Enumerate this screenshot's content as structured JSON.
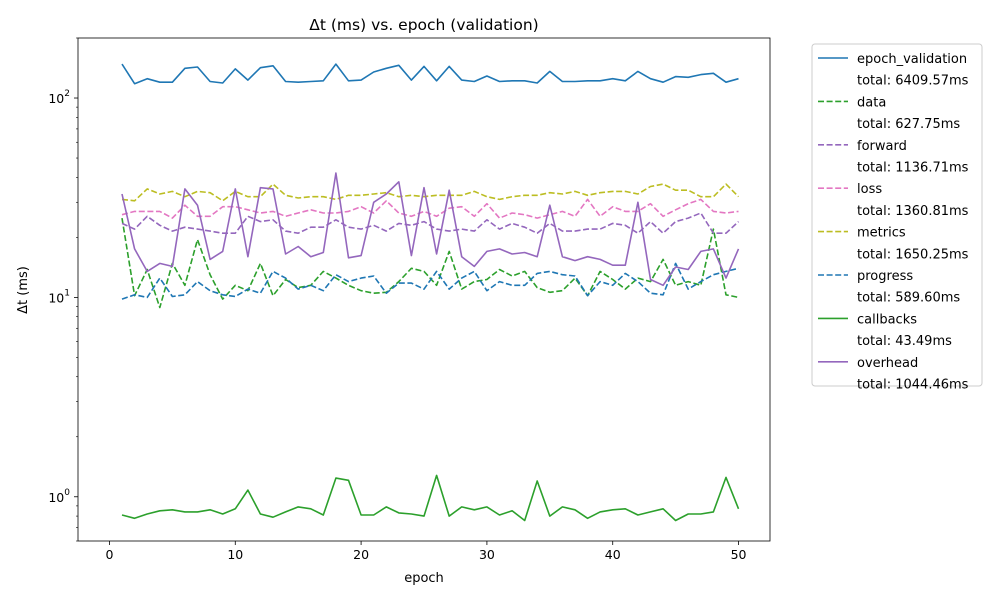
{
  "chart_data": {
    "type": "line",
    "title": "Δt (ms) vs. epoch (validation)",
    "xlabel": "epoch",
    "ylabel": "Δt (ms)",
    "yscale": "log",
    "xlim": [
      -2.5,
      52.5
    ],
    "ylim": [
      0.6,
      200
    ],
    "xticks": [
      0,
      10,
      20,
      30,
      40,
      50
    ],
    "yticks": [
      {
        "value": 1,
        "label": "10^0"
      },
      {
        "value": 10,
        "label": "10^1"
      },
      {
        "value": 100,
        "label": "10^2"
      }
    ],
    "grid": false,
    "legend_position": "outside-right-top",
    "x": [
      1,
      2,
      3,
      4,
      5,
      6,
      7,
      8,
      9,
      10,
      11,
      12,
      13,
      14,
      15,
      16,
      17,
      18,
      19,
      20,
      21,
      22,
      23,
      24,
      25,
      26,
      27,
      28,
      29,
      30,
      31,
      32,
      33,
      34,
      35,
      36,
      37,
      38,
      39,
      40,
      41,
      42,
      43,
      44,
      45,
      46,
      47,
      48,
      49,
      50
    ],
    "series": [
      {
        "name": "epoch_validation",
        "total": "total: 6409.57ms",
        "color": "#1f77b4",
        "dash": "solid",
        "values": [
          148,
          118,
          125,
          120,
          120,
          141,
          143,
          121,
          119,
          140,
          123,
          142,
          145,
          121,
          120,
          121,
          122,
          148,
          122,
          123,
          135,
          141,
          146,
          123,
          144,
          122,
          144,
          123,
          121,
          129,
          121,
          122,
          122,
          119,
          136,
          121,
          121,
          122,
          122,
          125,
          122,
          136,
          125,
          120,
          128,
          127,
          131,
          133,
          120,
          125
        ]
      },
      {
        "name": "data",
        "total": "total: 627.75ms",
        "color": "#2ca02c",
        "dash": "dashed",
        "values": [
          25,
          10.2,
          13.8,
          8.9,
          14.8,
          11.5,
          19.5,
          13,
          9.8,
          11.5,
          10.8,
          14.8,
          10.2,
          12.3,
          11.2,
          11.5,
          13.5,
          12.5,
          11.5,
          10.8,
          10.5,
          10.6,
          12,
          14,
          13.5,
          11.5,
          17,
          11,
          12,
          12.3,
          13.8,
          12.8,
          13.5,
          11.2,
          10.6,
          10.8,
          12.5,
          10.2,
          13.5,
          12.3,
          11,
          12.5,
          12,
          15.5,
          11.5,
          12,
          11.5,
          22,
          10.3,
          10
        ]
      },
      {
        "name": "forward",
        "total": "total: 1136.71ms",
        "color": "#9467bd",
        "dash": "dashed",
        "values": [
          23.5,
          22,
          25.5,
          23,
          21.5,
          22.5,
          22,
          21.5,
          21,
          21,
          25.5,
          24,
          24.5,
          21.5,
          21,
          22.5,
          22.5,
          24.5,
          22.5,
          22,
          23,
          21.5,
          23.5,
          23,
          24,
          22,
          21.5,
          22,
          21.5,
          24.5,
          22,
          23.5,
          22.5,
          21,
          23.5,
          21.5,
          21.5,
          22,
          22,
          23.5,
          23,
          21,
          24,
          21,
          24,
          25,
          26.5,
          21,
          21,
          24
        ]
      },
      {
        "name": "loss",
        "total": "total: 1360.81ms",
        "color": "#e377c2",
        "dash": "dashed",
        "values": [
          26,
          27,
          27,
          27,
          25,
          29,
          25.5,
          25.5,
          28.5,
          28.5,
          27.5,
          26.5,
          27,
          25.5,
          26.5,
          27.5,
          26.5,
          26.5,
          27,
          28.5,
          26.5,
          30.5,
          26.5,
          25.5,
          27,
          25.5,
          28,
          28.5,
          25.5,
          29.5,
          25,
          26.5,
          26,
          25,
          26,
          27,
          25.5,
          31,
          25.5,
          28.5,
          27,
          27,
          29.5,
          25.5,
          27.5,
          29.5,
          31,
          27,
          26.5,
          27
        ]
      },
      {
        "name": "metrics",
        "total": "total: 1650.25ms",
        "color": "#bcbd22",
        "dash": "dashed",
        "values": [
          31,
          30.5,
          35,
          33,
          34,
          32,
          34,
          33.5,
          30.5,
          34,
          32,
          32,
          37,
          32.5,
          31.5,
          32,
          32,
          31,
          32.5,
          32.5,
          33,
          33.5,
          32,
          32.5,
          32,
          32.5,
          32.5,
          32.5,
          34,
          32,
          31,
          32,
          32.5,
          32.5,
          33.5,
          33,
          34,
          32.5,
          33.5,
          34,
          34,
          33,
          36,
          37,
          34.5,
          34.5,
          32,
          32,
          37,
          32
        ]
      },
      {
        "name": "progress",
        "total": "total: 589.60ms",
        "color": "#1f77b4",
        "dash": "dashed",
        "values": [
          9.8,
          10.3,
          10,
          12.5,
          10.1,
          10.3,
          12,
          10.8,
          10.3,
          10.1,
          11,
          10.5,
          13.5,
          12.5,
          11,
          11.5,
          10.8,
          13,
          12,
          12.5,
          12.8,
          10.5,
          11.8,
          11.8,
          11,
          13.5,
          11,
          12.5,
          13.5,
          10.8,
          12,
          11.5,
          11.5,
          13.2,
          13.5,
          13,
          12.8,
          10.2,
          12,
          11.5,
          13.2,
          12,
          10.5,
          10.3,
          14.8,
          11,
          12,
          13,
          13.5,
          14
        ]
      },
      {
        "name": "callbacks",
        "total": "total: 43.49ms",
        "color": "#2ca02c",
        "dash": "solid",
        "values": [
          0.81,
          0.78,
          0.82,
          0.85,
          0.86,
          0.84,
          0.84,
          0.86,
          0.82,
          0.87,
          1.08,
          0.82,
          0.79,
          0.84,
          0.89,
          0.87,
          0.81,
          1.24,
          1.21,
          0.81,
          0.81,
          0.89,
          0.83,
          0.82,
          0.8,
          1.28,
          0.8,
          0.89,
          0.86,
          0.89,
          0.81,
          0.85,
          0.76,
          1.2,
          0.8,
          0.89,
          0.86,
          0.78,
          0.84,
          0.86,
          0.87,
          0.81,
          0.84,
          0.87,
          0.76,
          0.82,
          0.82,
          0.84,
          1.25,
          0.87
        ]
      },
      {
        "name": "overhead",
        "total": "total: 1044.46ms",
        "color": "#9467bd",
        "dash": "solid",
        "values": [
          33,
          17.5,
          13.5,
          14.8,
          14.3,
          35,
          29,
          15.5,
          17,
          35,
          16,
          35.5,
          35,
          16.5,
          18,
          16,
          16.8,
          42,
          15.8,
          16.2,
          30,
          33,
          38,
          16.2,
          35.5,
          16.5,
          34.5,
          16,
          14.3,
          17,
          17.5,
          16.5,
          16.8,
          16,
          29,
          16,
          15.3,
          16,
          15.5,
          14.5,
          14.5,
          30,
          12.3,
          11.5,
          14.2,
          13.8,
          17,
          17.5,
          12.5,
          17.5
        ]
      }
    ]
  }
}
